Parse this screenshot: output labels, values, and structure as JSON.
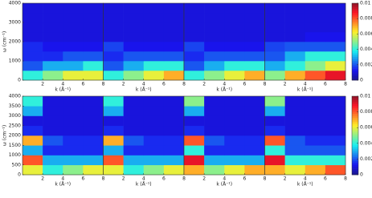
{
  "chart_data": [
    {
      "type": "heatmap",
      "xlabel": "k (Å⁻¹)",
      "ylabel": "ω (cm⁻¹)",
      "xlim": [
        0,
        8
      ],
      "xticks": [
        2,
        4,
        6,
        8
      ],
      "ylim": [
        0,
        4000
      ],
      "yticks": [
        0,
        1000,
        2000,
        3000,
        4000
      ],
      "xbins": [
        0,
        2,
        4,
        6,
        8
      ],
      "ybins": [
        0,
        500,
        1000,
        1500,
        2000,
        2500,
        3000,
        3500,
        4000
      ],
      "z": [
        [
          0.004,
          0.005,
          0.006,
          0.006
        ],
        [
          0.002,
          0.003,
          0.003,
          0.004
        ],
        [
          0.0015,
          0.0015,
          0.002,
          0.002
        ],
        [
          0.0015,
          0.0012,
          0.0012,
          0.0012
        ],
        [
          0.001,
          0.001,
          0.001,
          0.001
        ],
        [
          0.001,
          0.001,
          0.001,
          0.001
        ],
        [
          0.001,
          0.001,
          0.001,
          0.001
        ],
        [
          0.001,
          0.001,
          0.001,
          0.001
        ]
      ]
    },
    {
      "type": "heatmap",
      "xlabel": "k (Å⁻¹)",
      "xlim": [
        0,
        8
      ],
      "xticks": [
        2,
        4,
        6,
        8
      ],
      "ylim": [
        0,
        4000
      ],
      "xbins": [
        0,
        2,
        4,
        6,
        8
      ],
      "ybins": [
        0,
        500,
        1000,
        1500,
        2000,
        2500,
        3000,
        3500,
        4000
      ],
      "z": [
        [
          0.004,
          0.005,
          0.006,
          0.007
        ],
        [
          0.002,
          0.003,
          0.004,
          0.004
        ],
        [
          0.0015,
          0.002,
          0.002,
          0.002
        ],
        [
          0.0018,
          0.0012,
          0.0012,
          0.0012
        ],
        [
          0.001,
          0.001,
          0.001,
          0.001
        ],
        [
          0.001,
          0.001,
          0.001,
          0.001
        ],
        [
          0.001,
          0.001,
          0.001,
          0.001
        ],
        [
          0.001,
          0.001,
          0.001,
          0.001
        ]
      ]
    },
    {
      "type": "heatmap",
      "xlabel": "k (Å⁻¹)",
      "xlim": [
        0,
        8
      ],
      "xticks": [
        2,
        4,
        6,
        8
      ],
      "ylim": [
        0,
        4000
      ],
      "xbins": [
        0,
        2,
        4,
        6,
        8
      ],
      "ybins": [
        0,
        500,
        1000,
        1500,
        2000,
        2500,
        3000,
        3500,
        4000
      ],
      "z": [
        [
          0.004,
          0.005,
          0.006,
          0.007
        ],
        [
          0.002,
          0.003,
          0.004,
          0.004
        ],
        [
          0.0015,
          0.002,
          0.002,
          0.002
        ],
        [
          0.0018,
          0.0012,
          0.0012,
          0.0012
        ],
        [
          0.001,
          0.001,
          0.001,
          0.001
        ],
        [
          0.001,
          0.001,
          0.001,
          0.001
        ],
        [
          0.001,
          0.001,
          0.001,
          0.001
        ],
        [
          0.001,
          0.001,
          0.001,
          0.001
        ]
      ]
    },
    {
      "type": "heatmap",
      "xlabel": "k (Å⁻¹)",
      "xlim": [
        0,
        8
      ],
      "xticks": [
        2,
        4,
        6,
        8
      ],
      "ylim": [
        0,
        4000
      ],
      "xbins": [
        0,
        2,
        4,
        6,
        8
      ],
      "ybins": [
        0,
        500,
        1000,
        1500,
        2000,
        2500,
        3000,
        3500,
        4000
      ],
      "z": [
        [
          0.005,
          0.007,
          0.008,
          0.009
        ],
        [
          0.003,
          0.004,
          0.005,
          0.006
        ],
        [
          0.002,
          0.003,
          0.004,
          0.004
        ],
        [
          0.0018,
          0.002,
          0.002,
          0.002
        ],
        [
          0.001,
          0.001,
          0.0012,
          0.0012
        ],
        [
          0.001,
          0.001,
          0.001,
          0.001
        ],
        [
          0.001,
          0.001,
          0.001,
          0.001
        ],
        [
          0.001,
          0.001,
          0.001,
          0.001
        ]
      ],
      "colorbar": {
        "lim": [
          0,
          0.01
        ],
        "ticks": [
          0,
          0.002,
          0.004,
          0.006,
          0.008,
          0.01
        ]
      }
    },
    {
      "type": "heatmap",
      "xlabel": "k (Å⁻¹)",
      "ylabel": "ω (cm⁻¹)",
      "xlim": [
        0,
        8
      ],
      "xticks": [
        2,
        4,
        6,
        8
      ],
      "ylim": [
        0,
        4000
      ],
      "yticks": [
        0,
        500,
        1000,
        1500,
        2000,
        2500,
        3000,
        3500,
        4000
      ],
      "xbins": [
        0,
        2,
        4,
        6,
        8
      ],
      "ybins": [
        0,
        500,
        1000,
        1500,
        2000,
        2500,
        3000,
        3500,
        4000
      ],
      "z": [
        [
          0.006,
          0.004,
          0.005,
          0.006
        ],
        [
          0.008,
          0.003,
          0.003,
          0.003
        ],
        [
          0.003,
          0.0015,
          0.0015,
          0.0015
        ],
        [
          0.007,
          0.002,
          0.0015,
          0.0015
        ],
        [
          0.0015,
          0.001,
          0.001,
          0.001
        ],
        [
          0.001,
          0.001,
          0.001,
          0.001
        ],
        [
          0.003,
          0.001,
          0.001,
          0.001
        ],
        [
          0.004,
          0.001,
          0.001,
          0.001
        ]
      ]
    },
    {
      "type": "heatmap",
      "xlabel": "k (Å⁻¹)",
      "xlim": [
        0,
        8
      ],
      "xticks": [
        2,
        4,
        6,
        8
      ],
      "ylim": [
        0,
        4000
      ],
      "xbins": [
        0,
        2,
        4,
        6,
        8
      ],
      "ybins": [
        0,
        500,
        1000,
        1500,
        2000,
        2500,
        3000,
        3500,
        4000
      ],
      "z": [
        [
          0.006,
          0.004,
          0.005,
          0.006
        ],
        [
          0.008,
          0.003,
          0.003,
          0.003
        ],
        [
          0.003,
          0.0015,
          0.0015,
          0.0015
        ],
        [
          0.007,
          0.002,
          0.0015,
          0.0015
        ],
        [
          0.0015,
          0.001,
          0.001,
          0.001
        ],
        [
          0.001,
          0.001,
          0.001,
          0.001
        ],
        [
          0.003,
          0.001,
          0.001,
          0.001
        ],
        [
          0.004,
          0.001,
          0.001,
          0.001
        ]
      ]
    },
    {
      "type": "heatmap",
      "xlabel": "k (Å⁻¹)",
      "xlim": [
        0,
        8
      ],
      "xticks": [
        2,
        4,
        6,
        8
      ],
      "ylim": [
        0,
        4000
      ],
      "xbins": [
        0,
        2,
        4,
        6,
        8
      ],
      "ybins": [
        0,
        500,
        1000,
        1500,
        2000,
        2500,
        3000,
        3500,
        4000
      ],
      "z": [
        [
          0.007,
          0.005,
          0.006,
          0.007
        ],
        [
          0.009,
          0.003,
          0.003,
          0.003
        ],
        [
          0.004,
          0.0015,
          0.0015,
          0.0015
        ],
        [
          0.008,
          0.002,
          0.0015,
          0.0015
        ],
        [
          0.0015,
          0.001,
          0.001,
          0.001
        ],
        [
          0.001,
          0.001,
          0.001,
          0.001
        ],
        [
          0.003,
          0.001,
          0.001,
          0.001
        ],
        [
          0.005,
          0.001,
          0.001,
          0.001
        ]
      ]
    },
    {
      "type": "heatmap",
      "xlabel": "k (Å⁻¹)",
      "xlim": [
        0,
        8
      ],
      "xticks": [
        2,
        4,
        6,
        8
      ],
      "ylim": [
        0,
        4000
      ],
      "xbins": [
        0,
        2,
        4,
        6,
        8
      ],
      "ybins": [
        0,
        500,
        1000,
        1500,
        2000,
        2500,
        3000,
        3500,
        4000
      ],
      "z": [
        [
          0.007,
          0.006,
          0.007,
          0.008
        ],
        [
          0.009,
          0.004,
          0.004,
          0.004
        ],
        [
          0.004,
          0.002,
          0.002,
          0.002
        ],
        [
          0.008,
          0.002,
          0.0015,
          0.0015
        ],
        [
          0.0015,
          0.001,
          0.001,
          0.001
        ],
        [
          0.001,
          0.001,
          0.001,
          0.001
        ],
        [
          0.003,
          0.001,
          0.001,
          0.001
        ],
        [
          0.005,
          0.001,
          0.001,
          0.001
        ]
      ],
      "colorbar": {
        "lim": [
          0,
          0.01
        ],
        "ticks": [
          0,
          0.002,
          0.004,
          0.006,
          0.008,
          0.01
        ]
      }
    }
  ]
}
